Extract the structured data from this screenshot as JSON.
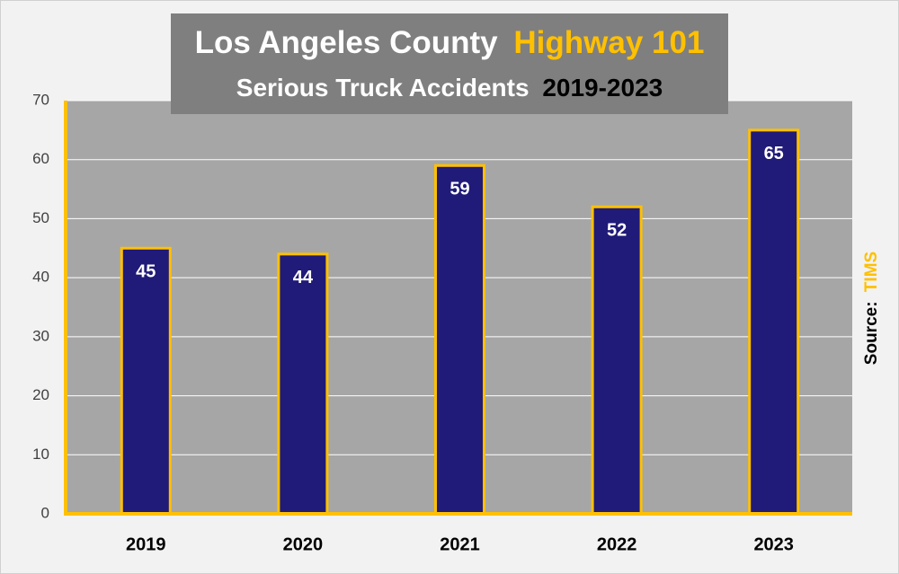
{
  "chart_data": {
    "type": "bar",
    "title": "Los Angeles County",
    "title_highlight": "Highway 101",
    "subtitle": "Serious Truck Accidents",
    "subtitle_years": "2019-2023",
    "source_label": "Source:",
    "source": "TIMS",
    "categories": [
      "2019",
      "2020",
      "2021",
      "2022",
      "2023"
    ],
    "values": [
      45,
      44,
      59,
      52,
      65
    ],
    "color": "#201a78",
    "edge_color": "#ffc000",
    "axis_color": "#ffc000",
    "ylim": [
      0,
      70
    ],
    "yticks": [
      0,
      10,
      20,
      30,
      40,
      50,
      60,
      70
    ],
    "grid": true
  }
}
